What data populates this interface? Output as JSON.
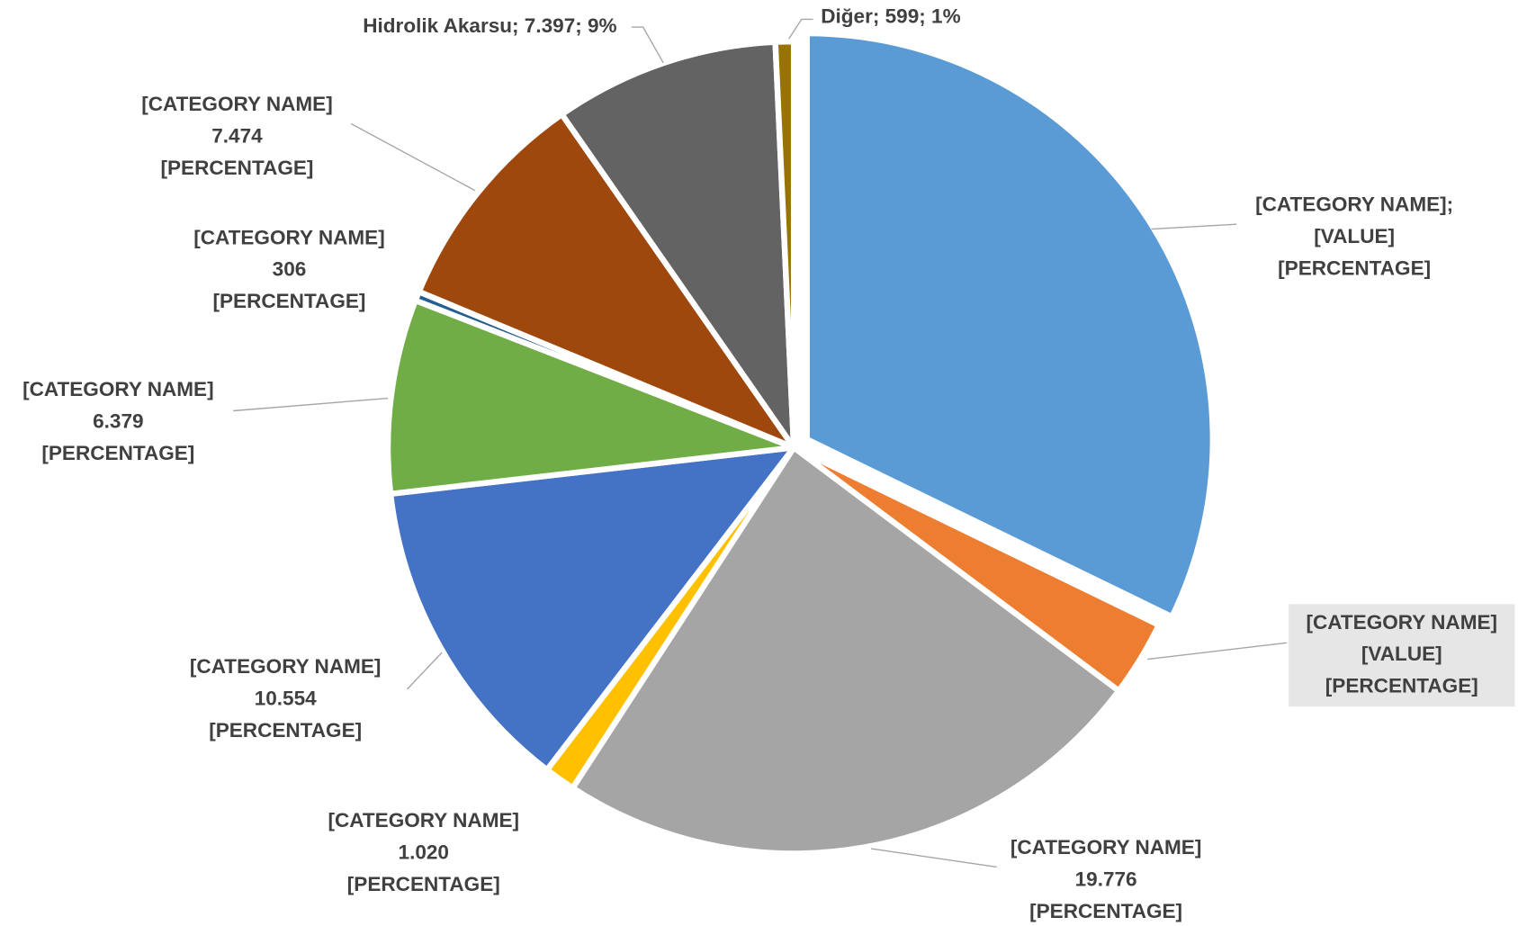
{
  "chart_data": {
    "type": "pie",
    "values": [
      26600,
      2500,
      19776,
      1020,
      10554,
      6379,
      306,
      7474,
      7397,
      599
    ],
    "value_labels": [
      [
        "[CATEGORY NAME];",
        "[VALUE]",
        "[PERCENTAGE]"
      ],
      [
        "[CATEGORY NAME]",
        "[VALUE]",
        "[PERCENTAGE]"
      ],
      [
        "[CATEGORY NAME]",
        "19.776",
        "[PERCENTAGE]"
      ],
      [
        "[CATEGORY NAME]",
        "1.020",
        "[PERCENTAGE]"
      ],
      [
        "[CATEGORY NAME]",
        "10.554",
        "[PERCENTAGE]"
      ],
      [
        "[CATEGORY NAME]",
        "6.379",
        "[PERCENTAGE]"
      ],
      [
        "[CATEGORY NAME]",
        "306",
        "[PERCENTAGE]"
      ],
      [
        "[CATEGORY NAME]",
        "7.474",
        "[PERCENTAGE]"
      ],
      [
        "Hidrolik Akarsu; 7.397; 9%"
      ],
      [
        "Diğer; 599; 1%"
      ]
    ],
    "colors": [
      "#5b9bd5",
      "#ed7d31",
      "#a5a5a5",
      "#ffc000",
      "#4472c4",
      "#70ad47",
      "#255e91",
      "#9e480e",
      "#636363",
      "#997300"
    ]
  }
}
